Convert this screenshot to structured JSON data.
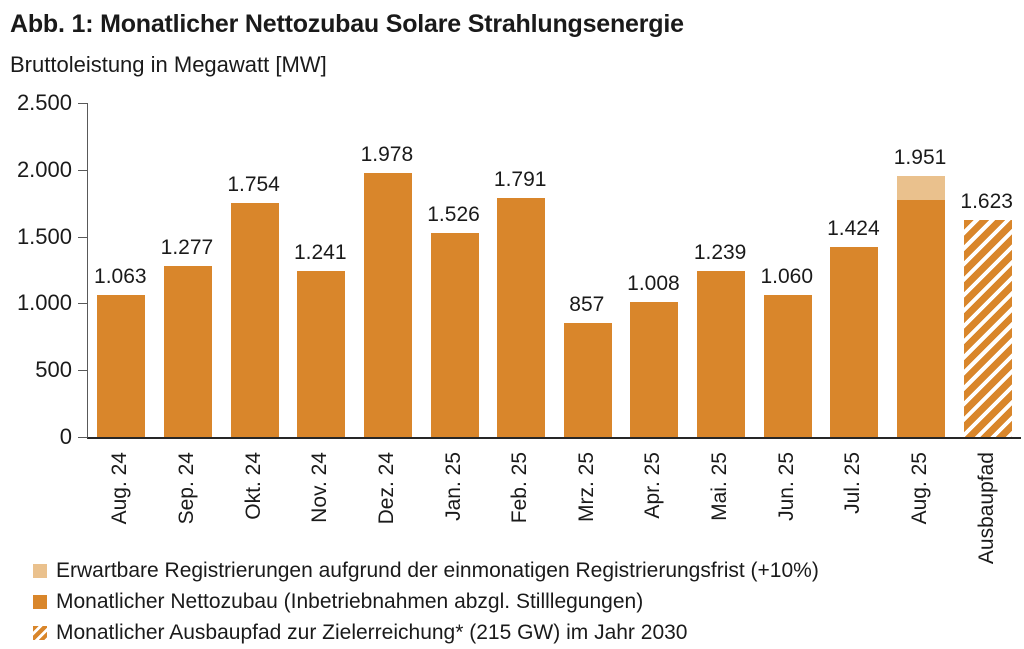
{
  "title": "Abb. 1: Monatlicher Nettozubau Solare Strahlungsenergie",
  "subtitle": "Bruttoleistung in Megawatt [MW]",
  "chart_data": {
    "type": "bar",
    "title": "Abb. 1: Monatlicher Nettozubau Solare Strahlungsenergie",
    "subtitle": "Bruttoleistung in Megawatt [MW]",
    "ylabel": "Bruttoleistung in Megawatt [MW]",
    "xlabel": "",
    "categories": [
      "Aug. 24",
      "Sep. 24",
      "Okt. 24",
      "Nov. 24",
      "Dez. 24",
      "Jan. 25",
      "Feb. 25",
      "Mrz. 25",
      "Apr. 25",
      "Mai. 25",
      "Jun. 25",
      "Jul. 25",
      "Aug. 25",
      "Ausbaupfad"
    ],
    "values": [
      1063,
      1277,
      1754,
      1241,
      1978,
      1526,
      1791,
      857,
      1008,
      1239,
      1060,
      1424,
      1951,
      1623
    ],
    "value_labels": [
      "1.063",
      "1.277",
      "1.754",
      "1.241",
      "1.978",
      "1.526",
      "1.791",
      "857",
      "1.008",
      "1.239",
      "1.060",
      "1.424",
      "1.951",
      "1.623"
    ],
    "bar_styles": [
      "solid",
      "solid",
      "solid",
      "solid",
      "solid",
      "solid",
      "solid",
      "solid",
      "solid",
      "solid",
      "solid",
      "solid",
      "stacked",
      "hatched"
    ],
    "stacked_bar": {
      "category": "Aug. 25",
      "base_value": 1774,
      "expected_total": 1951,
      "expected_pct": "+10%"
    },
    "ylim": [
      0,
      2500
    ],
    "yticks": [
      {
        "value": 0,
        "label": "0"
      },
      {
        "value": 500,
        "label": "500"
      },
      {
        "value": 1000,
        "label": "1.000"
      },
      {
        "value": 1500,
        "label": "1.500"
      },
      {
        "value": 2000,
        "label": "2.000"
      },
      {
        "value": 2500,
        "label": "2.500"
      }
    ],
    "gridlines": false,
    "x_label_rotation": 90,
    "legend_position": "bottom-left",
    "colors": {
      "bar": "#D9862B",
      "expected": "#EAC18D",
      "hatch_foreground": "#D9862B",
      "hatch_background": "#FFFFFF",
      "axis": "#595959",
      "text": "#1A1A1A"
    }
  },
  "legend": {
    "items": [
      {
        "swatch": "expected",
        "label": "Erwartbare Registrierungen aufgrund der einmonatigen Registrierungsfrist (+10%)"
      },
      {
        "swatch": "solid",
        "label": "Monatlicher Nettozubau (Inbetriebnahmen abzgl. Stilllegungen)"
      },
      {
        "swatch": "hatched",
        "label": "Monatlicher Ausbaupfad zur Zielerreichung* (215 GW) im Jahr 2030"
      }
    ]
  }
}
